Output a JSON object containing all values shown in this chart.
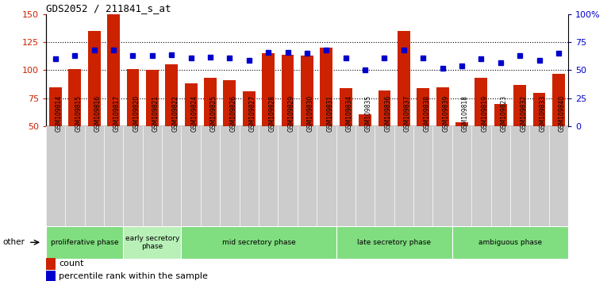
{
  "title": "GDS2052 / 211841_s_at",
  "samples": [
    "GSM109814",
    "GSM109815",
    "GSM109816",
    "GSM109817",
    "GSM109820",
    "GSM109821",
    "GSM109822",
    "GSM109824",
    "GSM109825",
    "GSM109826",
    "GSM109827",
    "GSM109828",
    "GSM109829",
    "GSM109830",
    "GSM109831",
    "GSM109834",
    "GSM109835",
    "GSM109836",
    "GSM109837",
    "GSM109838",
    "GSM109839",
    "GSM109818",
    "GSM109819",
    "GSM109823",
    "GSM109832",
    "GSM109833",
    "GSM109840"
  ],
  "counts": [
    85,
    101,
    135,
    150,
    101,
    100,
    105,
    88,
    93,
    91,
    81,
    115,
    114,
    113,
    120,
    84,
    61,
    82,
    135,
    84,
    85,
    54,
    93,
    70,
    87,
    80,
    97
  ],
  "percentile": [
    60,
    63,
    68,
    68,
    63,
    63,
    64,
    61,
    62,
    61,
    59,
    66,
    66,
    65,
    68,
    61,
    50,
    61,
    68,
    61,
    52,
    54,
    60,
    57,
    63,
    59,
    65
  ],
  "phases": [
    {
      "label": "proliferative phase",
      "start": 0,
      "end": 4,
      "color": "#80dd80"
    },
    {
      "label": "early secretory\nphase",
      "start": 4,
      "end": 7,
      "color": "#b8f0b8"
    },
    {
      "label": "mid secretory phase",
      "start": 7,
      "end": 15,
      "color": "#80dd80"
    },
    {
      "label": "late secretory phase",
      "start": 15,
      "end": 21,
      "color": "#80dd80"
    },
    {
      "label": "ambiguous phase",
      "start": 21,
      "end": 27,
      "color": "#80dd80"
    }
  ],
  "ylim": [
    50,
    150
  ],
  "yticks": [
    50,
    75,
    100,
    125,
    150
  ],
  "bar_color": "#cc2200",
  "dot_color": "#0000cc",
  "right_ylim": [
    0,
    100
  ],
  "right_yticks": [
    0,
    25,
    50,
    75,
    100
  ],
  "right_yticklabels": [
    "0",
    "25",
    "50",
    "75",
    "100%"
  ]
}
